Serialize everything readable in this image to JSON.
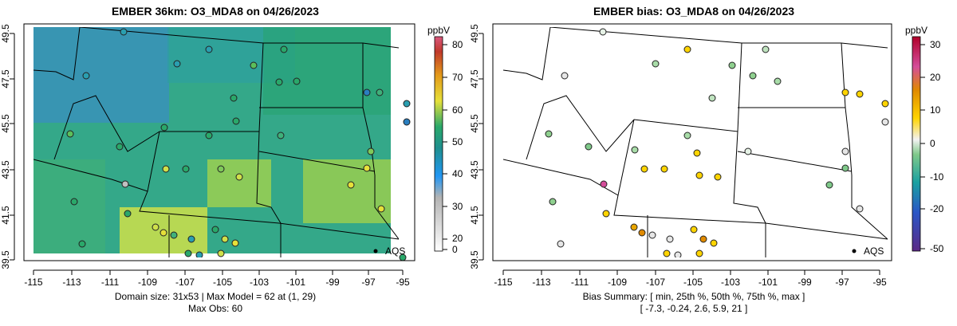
{
  "colors": {
    "colorbar_stops": [
      "#ffffff",
      "#b3b3b3",
      "#2196f3",
      "#1f8f8f",
      "#2aa86a",
      "#e6e03a",
      "#e39a1a",
      "#c0392b",
      "#d9567d"
    ],
    "bias_stops": [
      "#5b2a86",
      "#2a56c6",
      "#1aa0a0",
      "#7fc98a",
      "#f2f2f2",
      "#ffd400",
      "#e08a00",
      "#d44d9a",
      "#b0002a"
    ]
  },
  "panels": [
    {
      "id": "left",
      "title": "EMBER 36km: O3_MDA8 on 04/26/2023",
      "caption_lines": [
        "Domain size: 31x53 | Max Model = 62 at (1, 29)",
        "Max Obs: 60"
      ],
      "xticks": [
        "-115",
        "-113",
        "-111",
        "-109",
        "-107",
        "-105",
        "-103",
        "-101",
        "-99",
        "-97",
        "-95"
      ],
      "yticks": [
        "39.5",
        "41.5",
        "43.5",
        "45.5",
        "47.5",
        "49.5"
      ],
      "colorbar": {
        "label": "ppbV",
        "ticks": [
          "80",
          "70",
          "60",
          "50",
          "40",
          "30",
          "20",
          "0"
        ]
      },
      "marker_label": "AQS"
    },
    {
      "id": "right",
      "title": "EMBER bias: O3_MDA8 on 04/26/2023",
      "caption_lines": [
        "Bias Summary: [ min, 25th %, 50th %, 75th %, max ]",
        "[ -7.3,   -0.24,   2.6,   5.9,   21 ]"
      ],
      "xticks": [
        "-115",
        "-113",
        "-111",
        "-109",
        "-107",
        "-105",
        "-103",
        "-101",
        "-99",
        "-97",
        "-95"
      ],
      "yticks": [
        "39.5",
        "41.5",
        "43.5",
        "45.5",
        "47.5",
        "49.5"
      ],
      "colorbar": {
        "label": "ppbV",
        "ticks": [
          "30",
          "20",
          "10",
          "0",
          "-10",
          "-20",
          "-50"
        ]
      },
      "marker_label": "AQS"
    }
  ]
}
